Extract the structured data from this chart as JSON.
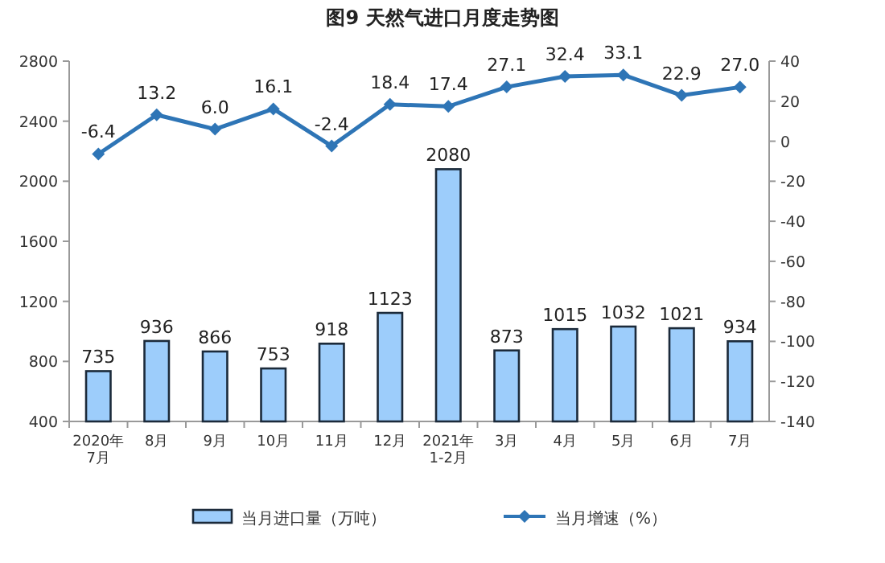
{
  "chart_data": {
    "type": "bar",
    "title": "图9  天然气进口月度走势图",
    "categories": [
      "2020年\n7月",
      "8月",
      "9月",
      "10月",
      "11月",
      "12月",
      "2021年\n1-2月",
      "3月",
      "4月",
      "5月",
      "6月",
      "7月"
    ],
    "series": [
      {
        "name": "当月进口量（万吨）",
        "color": "#9dcdfb",
        "values": [
          735,
          936,
          866,
          753,
          918,
          1123,
          2080,
          873,
          1015,
          1032,
          1021,
          934
        ]
      },
      {
        "name": "当月增速（%）",
        "type": "line",
        "axis": "y2",
        "color": "#2e75b6",
        "values": [
          -6.4,
          13.2,
          6.0,
          16.1,
          -2.4,
          18.4,
          17.4,
          27.1,
          32.4,
          33.1,
          22.9,
          27.0
        ],
        "value_labels": [
          "-6.4",
          "13.2",
          "6.0",
          "16.1",
          "-2.4",
          "18.4",
          "17.4",
          "27.1",
          "32.4",
          "33.1",
          "22.9",
          "27.0"
        ]
      }
    ],
    "ylim": [
      400,
      2800
    ],
    "yticks": [
      400,
      800,
      1200,
      1600,
      2000,
      2400,
      2800
    ],
    "y2lim": [
      -140,
      40
    ],
    "y2ticks": [
      -140,
      -120,
      -100,
      -80,
      -60,
      -40,
      -20,
      0,
      20,
      40
    ],
    "data_labels": true,
    "legend": "bottom",
    "grid": false,
    "marker": "diamond",
    "line_style": "solid"
  }
}
